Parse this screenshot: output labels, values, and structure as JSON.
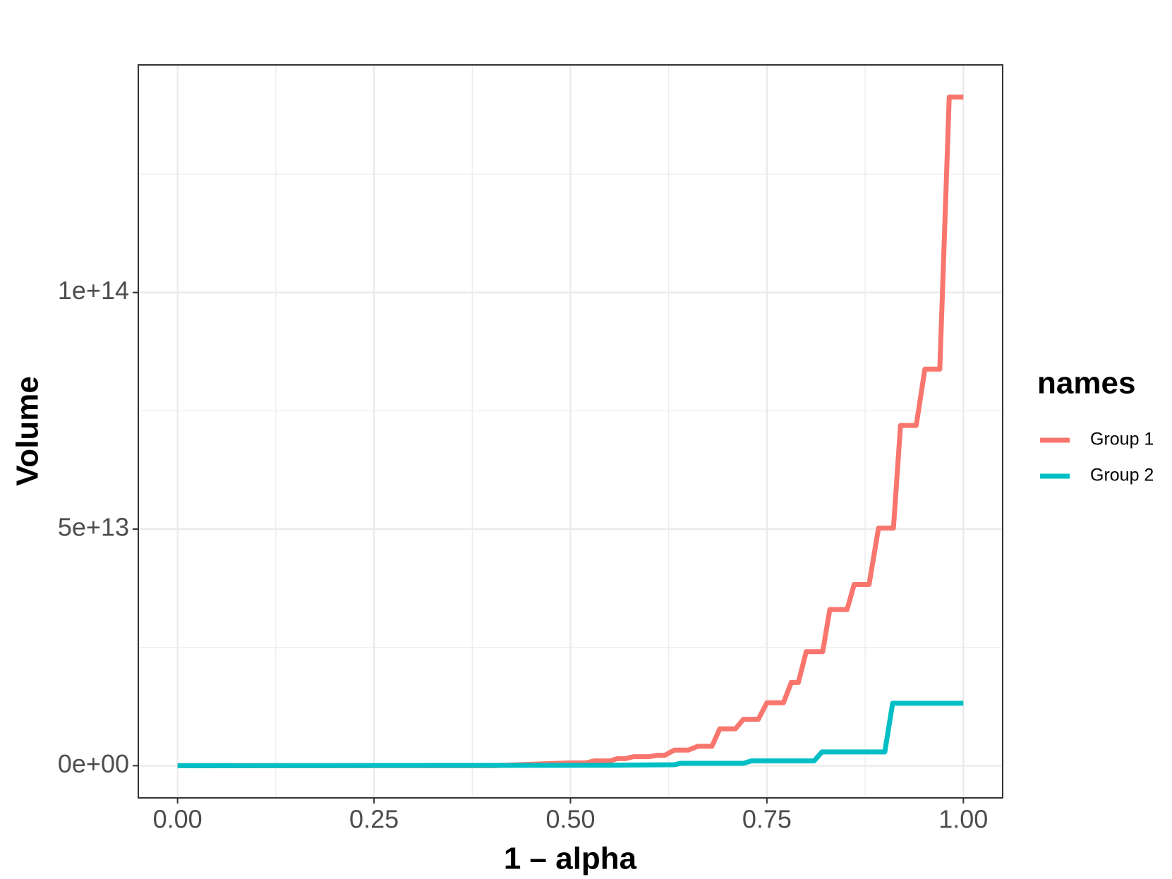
{
  "chart_data": {
    "type": "line",
    "xlabel": "1 – alpha",
    "ylabel": "Volume",
    "legend_title": "names",
    "legend": "right",
    "xlim": [
      -0.05,
      1.05
    ],
    "ylim": [
      -6800000000000.0,
      148100000000000.0
    ],
    "xticks": [
      {
        "value": 0,
        "label": "0.00"
      },
      {
        "value": 0.25,
        "label": "0.25"
      },
      {
        "value": 0.5,
        "label": "0.50"
      },
      {
        "value": 0.75,
        "label": "0.75"
      },
      {
        "value": 1,
        "label": "1.00"
      }
    ],
    "yticks": [
      {
        "value": 0,
        "label": "0e+00"
      },
      {
        "value": 50000000000000.0,
        "label": "5e+13"
      },
      {
        "value": 100000000000000.0,
        "label": "1e+14"
      }
    ],
    "x_minor_ticks": [
      0.125,
      0.375,
      0.625,
      0.875
    ],
    "y_minor_ticks": [
      25000000000000.0,
      75000000000000.0,
      125000000000000.0
    ],
    "grid": true,
    "series": [
      {
        "name": "Group 1",
        "color": "#F8766D",
        "x": [
          0,
          0.4,
          0.45,
          0.5,
          0.52,
          0.53,
          0.55,
          0.56,
          0.57,
          0.58,
          0.6,
          0.61,
          0.62,
          0.632,
          0.65,
          0.662,
          0.68,
          0.69,
          0.71,
          0.72,
          0.739,
          0.75,
          0.771,
          0.781,
          0.79,
          0.8,
          0.821,
          0.83,
          0.852,
          0.861,
          0.88,
          0.892,
          0.911,
          0.92,
          0.94,
          0.951,
          0.97,
          0.982,
          1.0
        ],
        "values": [
          0,
          0,
          300000000000.0,
          600000000000.0,
          600000000000.0,
          1000000000000.0,
          1000000000000.0,
          1500000000000.0,
          1500000000000.0,
          1900000000000.0,
          1900000000000.0,
          2200000000000.0,
          2200000000000.0,
          3300000000000.0,
          3300000000000.0,
          4100000000000.0,
          4100000000000.0,
          7800000000000.0,
          7800000000000.0,
          9800000000000.0,
          9800000000000.0,
          13300000000000.0,
          13300000000000.0,
          17600000000000.0,
          17600000000000.0,
          24100000000000.0,
          24100000000000.0,
          33000000000000.0,
          33000000000000.0,
          38300000000000.0,
          38300000000000.0,
          50200000000000.0,
          50200000000000.0,
          71900000000000.0,
          71900000000000.0,
          83800000000000.0,
          83800000000000.0,
          141300000000000.0,
          141300000000000.0
        ]
      },
      {
        "name": "Group 2",
        "color": "#00BFC4",
        "x": [
          0,
          0.55,
          0.632,
          0.64,
          0.72,
          0.73,
          0.81,
          0.82,
          0.9,
          0.91,
          1.0
        ],
        "values": [
          0,
          100000000000.0,
          200000000000.0,
          500000000000.0,
          500000000000.0,
          1000000000000.0,
          1000000000000.0,
          2900000000000.0,
          2900000000000.0,
          13200000000000.0,
          13200000000000.0
        ]
      }
    ]
  }
}
